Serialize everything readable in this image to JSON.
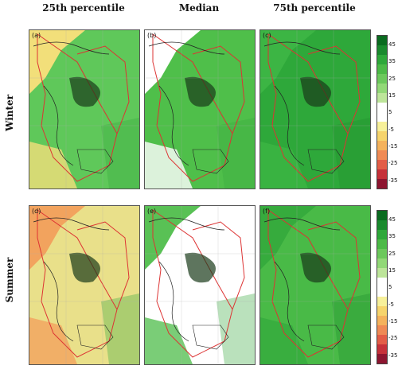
{
  "columns": [
    "25th percentile",
    "Median",
    "75th percentile"
  ],
  "rows": [
    "Winter",
    "Summer"
  ],
  "panels": [
    {
      "label": "(a)",
      "row": "Winter",
      "column": "25th percentile",
      "base": "#5fc85a",
      "coast": "#f2df7a"
    },
    {
      "label": "(b)",
      "row": "Winter",
      "column": "Median",
      "base": "#4fbf4a",
      "coast": "#ffffff"
    },
    {
      "label": "(c)",
      "row": "Winter",
      "column": "75th percentile",
      "base": "#2ea83a",
      "coast": "#3cb544"
    },
    {
      "label": "(d)",
      "row": "Summer",
      "column": "25th percentile",
      "base": "#e9e08a",
      "coast": "#f2a35e"
    },
    {
      "label": "(e)",
      "row": "Summer",
      "column": "Median",
      "base": "#ffffff",
      "coast": "#59c155"
    },
    {
      "label": "(f)",
      "row": "Summer",
      "column": "75th percentile",
      "base": "#49ba47",
      "coast": "#36ab3d"
    }
  ],
  "colorbar": {
    "ticks": [
      "45",
      "35",
      "25",
      "15",
      "5",
      "-5",
      "-15",
      "-25",
      "-35"
    ],
    "colors": [
      "#0a6b20",
      "#1a8a2e",
      "#2ea83a",
      "#4cba47",
      "#6cc85c",
      "#92d877",
      "#bde59a",
      "#ffffff",
      "#ffffff",
      "#f7f09a",
      "#f6d46c",
      "#f4b25c",
      "#ef8a55",
      "#e35d47",
      "#c6313a",
      "#8d1530"
    ]
  }
}
